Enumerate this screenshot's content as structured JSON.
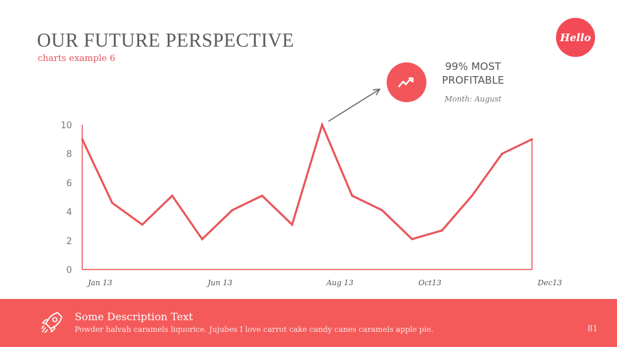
{
  "header": {
    "title": "OUR FUTURE PERSPECTIVE",
    "subtitle": "charts example 6",
    "logo_text": "Hello"
  },
  "callout": {
    "icon": "trending-up-icon",
    "title": "99% MOST PROFITABLE",
    "note": "Month: August"
  },
  "footer": {
    "icon": "rocket-icon",
    "heading": "Some Description Text",
    "text": "Powder halvah caramels liquorice. Jujubes I love carrot cake candy canes caramels apple pie.",
    "page_number": "81"
  },
  "colors": {
    "accent": "#f2565a",
    "line": "#e8555a",
    "footer_bg": "#f55a5a",
    "axis": "#e8555a",
    "text": "#5a5a5a"
  },
  "chart_data": {
    "type": "line",
    "x_tick_labels": [
      "Jan 13",
      "Jun 13",
      "Aug 13",
      "Oct13",
      "Dec13"
    ],
    "x_tick_positions": [
      0,
      4,
      8,
      11,
      15
    ],
    "y_ticks": [
      "0",
      "2",
      "4",
      "6",
      "8",
      "10"
    ],
    "ylim": [
      0,
      10
    ],
    "series": [
      {
        "values": [
          9,
          4.6,
          3.1,
          5.1,
          2.1,
          4.1,
          5.1,
          3.1,
          10,
          5.1,
          4.1,
          2.1,
          2.7,
          5.1,
          8,
          9
        ]
      }
    ],
    "grid": false,
    "legend": "none",
    "annotation": "arrow from peak at Aug 13 to callout"
  }
}
